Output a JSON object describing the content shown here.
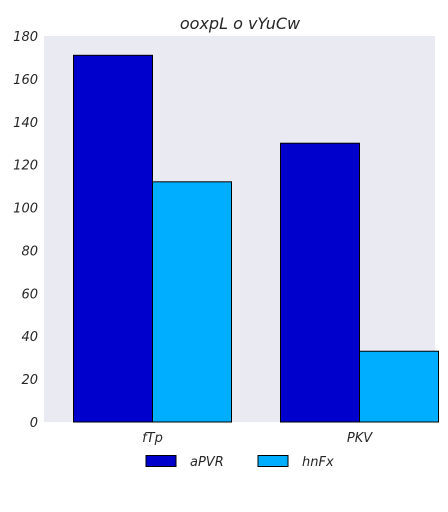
{
  "chart_data": {
    "type": "bar",
    "title": "ooxpL o  vYuCw",
    "categories": [
      "fTp",
      "PKV"
    ],
    "series": [
      {
        "name": "aPVR",
        "values": [
          171,
          130
        ]
      },
      {
        "name": "hnFx",
        "values": [
          112,
          33
        ]
      }
    ],
    "ylim": [
      0,
      180
    ],
    "yticks": [
      0,
      20,
      40,
      60,
      80,
      100,
      120,
      140,
      160,
      180
    ],
    "grid": false,
    "legend_position": "bottom"
  },
  "colors": {
    "plot_background": "#eaeaf2",
    "series": [
      "#0000cd",
      "#00aeff"
    ],
    "bar_edge": "#000000"
  }
}
